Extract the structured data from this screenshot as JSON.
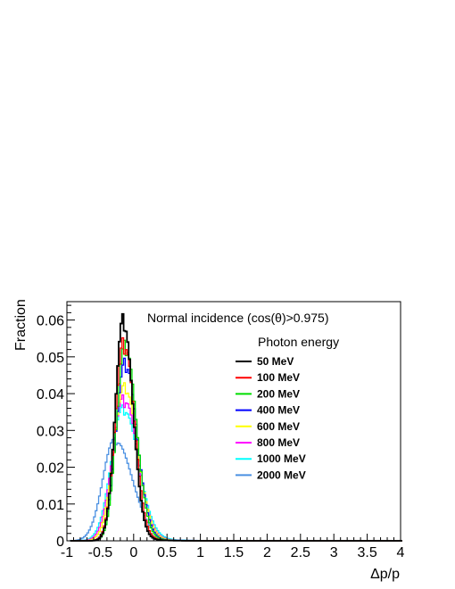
{
  "chart_data": {
    "type": "line",
    "style": "step-histogram",
    "annotation": "Normal incidence (cos(θ)>0.975)",
    "xlabel": "Δp/p",
    "ylabel": "Fraction",
    "xlim": [
      -1,
      4
    ],
    "ylim": [
      0,
      0.065
    ],
    "x_ticks": [
      "-1",
      "-0.5",
      "0",
      "0.5",
      "1",
      "1.5",
      "2",
      "2.5",
      "3",
      "3.5",
      "4"
    ],
    "y_ticks": [
      "0",
      "0.01",
      "0.02",
      "0.03",
      "0.04",
      "0.05",
      "0.06"
    ],
    "legend_title": "Photon energy",
    "legend_position": "top-right",
    "grid": false,
    "series": [
      {
        "name": "50 MeV",
        "color": "#000000",
        "peak_x": -0.15,
        "peak": 0.062,
        "width_left": 0.12,
        "width_right": 0.14,
        "tail": 0.15
      },
      {
        "name": "100 MeV",
        "color": "#ff0000",
        "peak_x": -0.14,
        "peak": 0.056,
        "width_left": 0.13,
        "width_right": 0.15,
        "tail": 0.16
      },
      {
        "name": "200 MeV",
        "color": "#00dd00",
        "peak_x": -0.12,
        "peak": 0.055,
        "width_left": 0.13,
        "width_right": 0.16,
        "tail": 0.17
      },
      {
        "name": "400 MeV",
        "color": "#0000ff",
        "peak_x": -0.12,
        "peak": 0.05,
        "width_left": 0.14,
        "width_right": 0.17,
        "tail": 0.18
      },
      {
        "name": "600 MeV",
        "color": "#ffff00",
        "peak_x": -0.13,
        "peak": 0.043,
        "width_left": 0.16,
        "width_right": 0.19,
        "tail": 0.2
      },
      {
        "name": "800 MeV",
        "color": "#ff00ff",
        "peak_x": -0.14,
        "peak": 0.04,
        "width_left": 0.17,
        "width_right": 0.2,
        "tail": 0.22
      },
      {
        "name": "1000 MeV",
        "color": "#00ffff",
        "peak_x": -0.15,
        "peak": 0.037,
        "width_left": 0.18,
        "width_right": 0.22,
        "tail": 0.25
      },
      {
        "name": "2000 MeV",
        "color": "#4a90e2",
        "peak_x": -0.28,
        "peak": 0.028,
        "width_left": 0.18,
        "width_right": 0.26,
        "tail": 0.35
      }
    ]
  }
}
